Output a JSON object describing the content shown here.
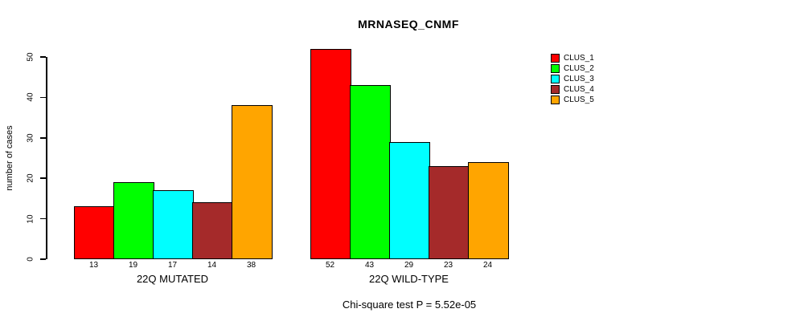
{
  "chart_data": {
    "type": "bar",
    "title": "MRNASEQ_CNMF",
    "ylabel": "number of cases",
    "xlabel": "",
    "ylim": [
      0,
      50
    ],
    "yticks": [
      0,
      10,
      20,
      30,
      40,
      50
    ],
    "grid": false,
    "legend_position": "top-right",
    "background_color": "#ffffff",
    "bar_border_color": "#000000",
    "series": [
      {
        "name": "CLUS_1",
        "color": "#FF0000"
      },
      {
        "name": "CLUS_2",
        "color": "#00FF00"
      },
      {
        "name": "CLUS_3",
        "color": "#00FFFF"
      },
      {
        "name": "CLUS_4",
        "color": "#A52A2A"
      },
      {
        "name": "CLUS_5",
        "color": "#FFA500"
      }
    ],
    "categories": [
      "22Q MUTATED",
      "22Q WILD-TYPE"
    ],
    "groups": [
      {
        "label": "22Q MUTATED",
        "values": [
          13,
          19,
          17,
          14,
          38
        ]
      },
      {
        "label": "22Q WILD-TYPE",
        "values": [
          52,
          43,
          29,
          23,
          24
        ]
      }
    ],
    "annotation": "Chi-square test P = 5.52e-05"
  }
}
